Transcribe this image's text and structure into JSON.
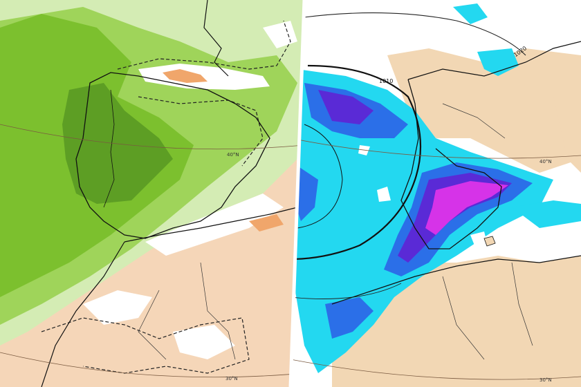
{
  "left_panel": {
    "latitude_labels": [
      "40°N",
      "30°N"
    ]
  },
  "right_panel": {
    "latitude_labels": [
      "40°N",
      "30°N"
    ],
    "isobar_labels": [
      "1010",
      "1020"
    ]
  },
  "colors": {
    "green_light": "#d4ecb4",
    "green_mid": "#9fd45a",
    "green_strong": "#7cc02e",
    "green_dark": "#5a9a24",
    "orange_light": "#f5d6b8",
    "orange_strong": "#f0a66b",
    "sea_tan": "#f2d7b4",
    "cyan": "#23d8f0",
    "blue": "#2b6fe8",
    "purple": "#5a2ad6",
    "magenta": "#d633e8",
    "divider": "#ffffff"
  }
}
